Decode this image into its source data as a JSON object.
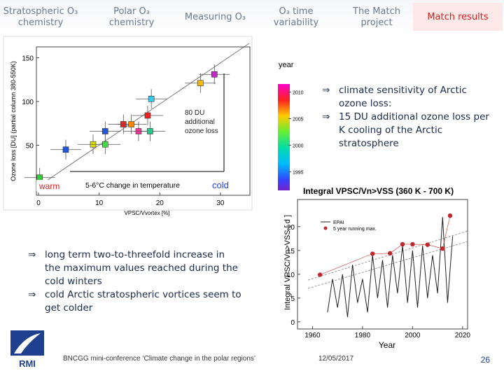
{
  "nav": {
    "tabs": [
      "Stratospheric O₃ chemistry",
      "Polar O₃ chemistry",
      "Measuring O₃",
      "O₃ time variability",
      "The Match project",
      "Match results"
    ]
  },
  "ozone_figure": {
    "y_label": "Ozone loss [DU] (partial column 380-550K)",
    "x_label": "VPSC/Vvortex [%]",
    "xlim": [
      -1.5,
      35.2
    ],
    "ylim": [
      -12,
      168
    ],
    "xticks": [
      0,
      10,
      20,
      30
    ],
    "yticks": [
      50,
      100,
      150
    ],
    "points": [
      {
        "x": 0.2,
        "y": 13,
        "color": "#33cc33"
      },
      {
        "x": 4.5,
        "y": 45,
        "color": "#2255dd"
      },
      {
        "x": 9,
        "y": 51,
        "color": "#dddd00"
      },
      {
        "x": 11,
        "y": 51,
        "color": "#44dd44"
      },
      {
        "x": 11,
        "y": 66,
        "color": "#2255dd"
      },
      {
        "x": 14,
        "y": 74,
        "color": "#ee2222"
      },
      {
        "x": 15.3,
        "y": 74,
        "color": "#ff8800"
      },
      {
        "x": 16.5,
        "y": 66,
        "color": "#ff3399"
      },
      {
        "x": 18.4,
        "y": 66,
        "color": "#22cc88"
      },
      {
        "x": 18,
        "y": 84,
        "color": "#ee2222"
      },
      {
        "x": 18.6,
        "y": 103,
        "color": "#33ccee"
      },
      {
        "x": 26.7,
        "y": 121,
        "color": "#ffbb00"
      },
      {
        "x": 29,
        "y": 131,
        "color": "#cc22cc"
      }
    ],
    "annotation": "80 DU additional ozone loss",
    "warm": "warm",
    "change": "5-6°C change in temperature",
    "cold": "cold",
    "colorbar": {
      "title": "year",
      "ylim": [
        1991.5,
        2011.5
      ],
      "ticks": [
        1995,
        2000,
        2005,
        2010
      ]
    }
  },
  "right_bullets": [
    {
      "marker": "⇒",
      "text": "climate sensitivity of Arctic ozone loss:"
    },
    {
      "marker": "⇒",
      "text": "15 DU additional ozone loss per K cooling of the Arctic stratosphere"
    }
  ],
  "vpsc_figure": {
    "title": "Integral VPSC/Vn>VSS (360 K - 700 K)",
    "y_label": "Integral VPSC/Vn>VSS [ d ]",
    "x_label": "Year",
    "xlim": [
      1954,
      2022
    ],
    "ylim": [
      -1.5,
      25.7
    ],
    "xticks": [
      1960,
      1980,
      2000,
      2020
    ],
    "yticks": [
      0,
      5,
      10,
      15,
      20
    ],
    "legend": [
      "EPAI",
      "5 year running max."
    ],
    "line": {
      "x": [
        1966,
        1968,
        1970,
        1972,
        1974,
        1976,
        1978,
        1980,
        1982,
        1984,
        1986,
        1988,
        1990,
        1992,
        1994,
        1996,
        1998,
        2000,
        2002,
        2004,
        2006,
        2008,
        2010,
        2012,
        2014,
        2016
      ],
      "values": [
        2,
        9,
        3,
        10,
        1,
        12,
        4,
        9,
        2,
        14,
        5,
        13,
        3,
        14,
        6,
        16,
        4,
        15,
        3,
        16,
        5,
        14,
        6,
        22,
        4,
        18
      ]
    },
    "max": {
      "x": [
        1963,
        1984,
        1991,
        1996,
        2000,
        2006,
        2012,
        2015
      ],
      "values": [
        9.9,
        14.3,
        14.4,
        16.3,
        16.3,
        16.2,
        15.4,
        22.3
      ]
    }
  },
  "left_bullets": [
    {
      "marker": "⇒",
      "text": "long term two-to-threefold increase in the maximum values reached during the cold winters"
    },
    {
      "marker": "⇒",
      "text": "cold Arctic stratospheric vortices seem to get colder"
    }
  ],
  "footer": {
    "logo": "RMI",
    "conference": "BNCGG mini-conference ‘Climate change in the polar regions’",
    "date": "12/05/2017",
    "page": "26"
  }
}
